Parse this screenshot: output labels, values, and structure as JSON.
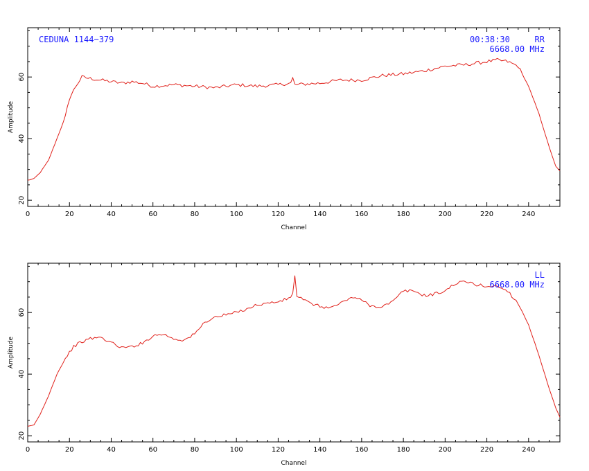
{
  "chart_data": [
    {
      "type": "line",
      "xlabel": "Channel",
      "ylabel": "Amplitude",
      "xlim": [
        0,
        255
      ],
      "ylim": [
        18,
        76
      ],
      "x_ticks": [
        0,
        20,
        40,
        60,
        80,
        100,
        120,
        140,
        160,
        180,
        200,
        220,
        240
      ],
      "y_ticks": [
        20,
        40,
        60
      ],
      "annotations": {
        "source": "CEDUNA 1144−379",
        "time": "00:38:30",
        "pol": "RR",
        "freq": "6668.00 MHz"
      },
      "color": "#e0201a",
      "anchors": [
        [
          0,
          26.5
        ],
        [
          3,
          27
        ],
        [
          6,
          29
        ],
        [
          10,
          33
        ],
        [
          14,
          40
        ],
        [
          18,
          47
        ],
        [
          20,
          53
        ],
        [
          23,
          57
        ],
        [
          26,
          60
        ],
        [
          30,
          59.5
        ],
        [
          35,
          59
        ],
        [
          40,
          58.5
        ],
        [
          45,
          58
        ],
        [
          50,
          58.5
        ],
        [
          55,
          58
        ],
        [
          60,
          57
        ],
        [
          70,
          57.5
        ],
        [
          80,
          57
        ],
        [
          90,
          56.5
        ],
        [
          100,
          57.5
        ],
        [
          110,
          57
        ],
        [
          120,
          57.5
        ],
        [
          126,
          58
        ],
        [
          127,
          59.5
        ],
        [
          128,
          57.5
        ],
        [
          140,
          58
        ],
        [
          150,
          59
        ],
        [
          160,
          59
        ],
        [
          170,
          60.5
        ],
        [
          180,
          61
        ],
        [
          190,
          62
        ],
        [
          200,
          63.5
        ],
        [
          210,
          64
        ],
        [
          220,
          65
        ],
        [
          225,
          65.5
        ],
        [
          230,
          65
        ],
        [
          235,
          63.5
        ],
        [
          240,
          57
        ],
        [
          245,
          48
        ],
        [
          250,
          37
        ],
        [
          253,
          31
        ],
        [
          255,
          29.5
        ]
      ],
      "spikes": [
        [
          127,
          59.8
        ]
      ],
      "noise": 0.55
    },
    {
      "type": "line",
      "xlabel": "Channel",
      "ylabel": "Amplitude",
      "xlim": [
        0,
        255
      ],
      "ylim": [
        18,
        76
      ],
      "x_ticks": [
        0,
        20,
        40,
        60,
        80,
        100,
        120,
        140,
        160,
        180,
        200,
        220,
        240
      ],
      "y_ticks": [
        20,
        40,
        60
      ],
      "annotations": {
        "pol": "LL",
        "freq": "6668.00 MHz"
      },
      "color": "#e0201a",
      "anchors": [
        [
          0,
          23
        ],
        [
          3,
          23.5
        ],
        [
          6,
          27
        ],
        [
          10,
          33
        ],
        [
          14,
          40
        ],
        [
          18,
          45
        ],
        [
          22,
          49
        ],
        [
          26,
          50.5
        ],
        [
          30,
          51.5
        ],
        [
          34,
          52
        ],
        [
          38,
          51
        ],
        [
          42,
          49.5
        ],
        [
          46,
          48.5
        ],
        [
          50,
          49
        ],
        [
          55,
          50
        ],
        [
          60,
          52.5
        ],
        [
          65,
          53
        ],
        [
          70,
          51.5
        ],
        [
          75,
          51
        ],
        [
          80,
          53
        ],
        [
          85,
          57
        ],
        [
          90,
          58.5
        ],
        [
          100,
          60
        ],
        [
          110,
          62.5
        ],
        [
          120,
          63.5
        ],
        [
          125,
          64.5
        ],
        [
          127,
          66
        ],
        [
          128,
          66
        ],
        [
          130,
          65
        ],
        [
          135,
          63
        ],
        [
          140,
          62
        ],
        [
          145,
          61.5
        ],
        [
          150,
          63
        ],
        [
          155,
          65
        ],
        [
          160,
          64
        ],
        [
          165,
          62
        ],
        [
          170,
          62
        ],
        [
          175,
          63.5
        ],
        [
          180,
          67
        ],
        [
          185,
          67
        ],
        [
          190,
          65.5
        ],
        [
          195,
          66
        ],
        [
          200,
          67
        ],
        [
          205,
          69.5
        ],
        [
          210,
          70
        ],
        [
          215,
          69
        ],
        [
          220,
          68.5
        ],
        [
          225,
          68.5
        ],
        [
          230,
          67
        ],
        [
          235,
          63
        ],
        [
          240,
          56
        ],
        [
          245,
          46
        ],
        [
          250,
          35
        ],
        [
          253,
          29
        ],
        [
          255,
          26
        ]
      ],
      "spikes": [
        [
          128,
          72
        ]
      ],
      "noise": 0.5
    }
  ]
}
